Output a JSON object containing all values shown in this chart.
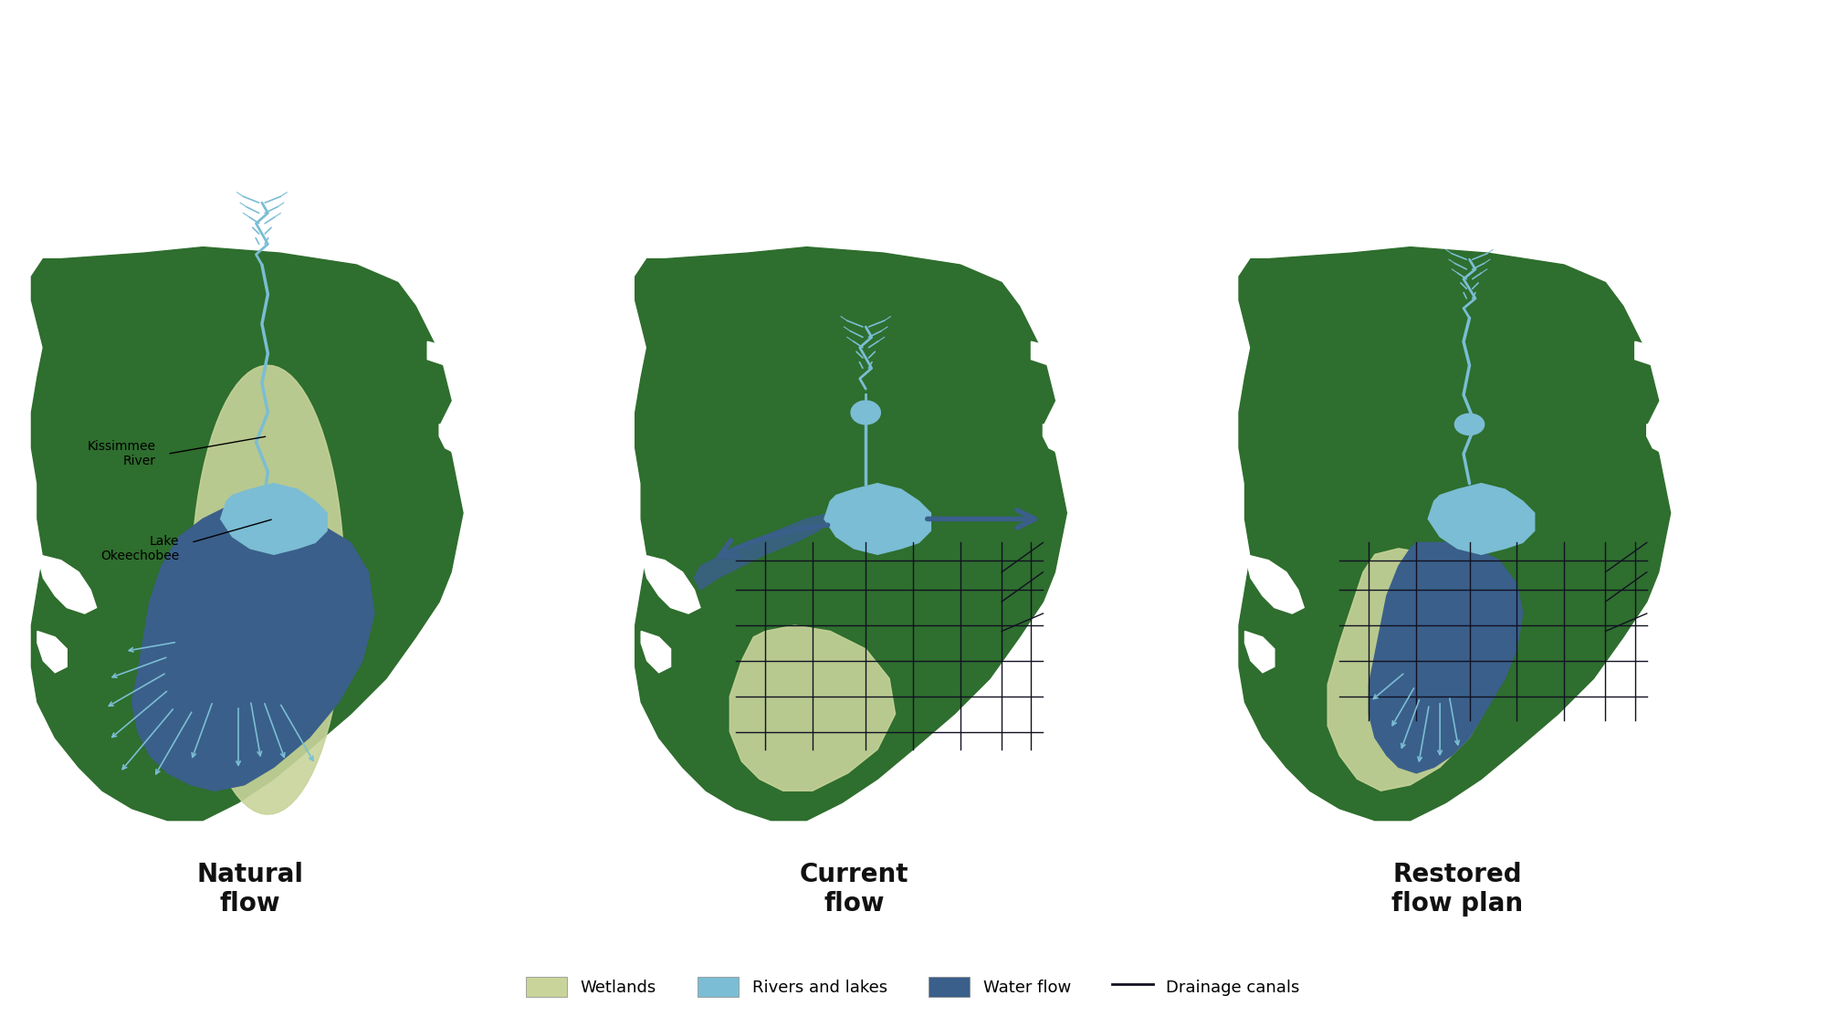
{
  "background_color": "#ffffff",
  "florida_color": "#2e6e2e",
  "wetlands_color": "#c8d49a",
  "rivers_lakes_color": "#7bbdd4",
  "water_flow_color": "#3a5f8a",
  "drainage_canals_color": "#111122",
  "text_color": "#111111",
  "titles": [
    "Natural\nflow",
    "Current\nflow",
    "Restored\nflow plan"
  ],
  "legend_labels": [
    "Wetlands",
    "Rivers and lakes",
    "Water flow",
    "Drainage canals"
  ],
  "label_kissimmee": "Kissimmee\nRiver",
  "label_okeechobee": "Lake\nOkeechobee",
  "title_fontsize": 20,
  "label_fontsize": 10,
  "legend_fontsize": 13
}
